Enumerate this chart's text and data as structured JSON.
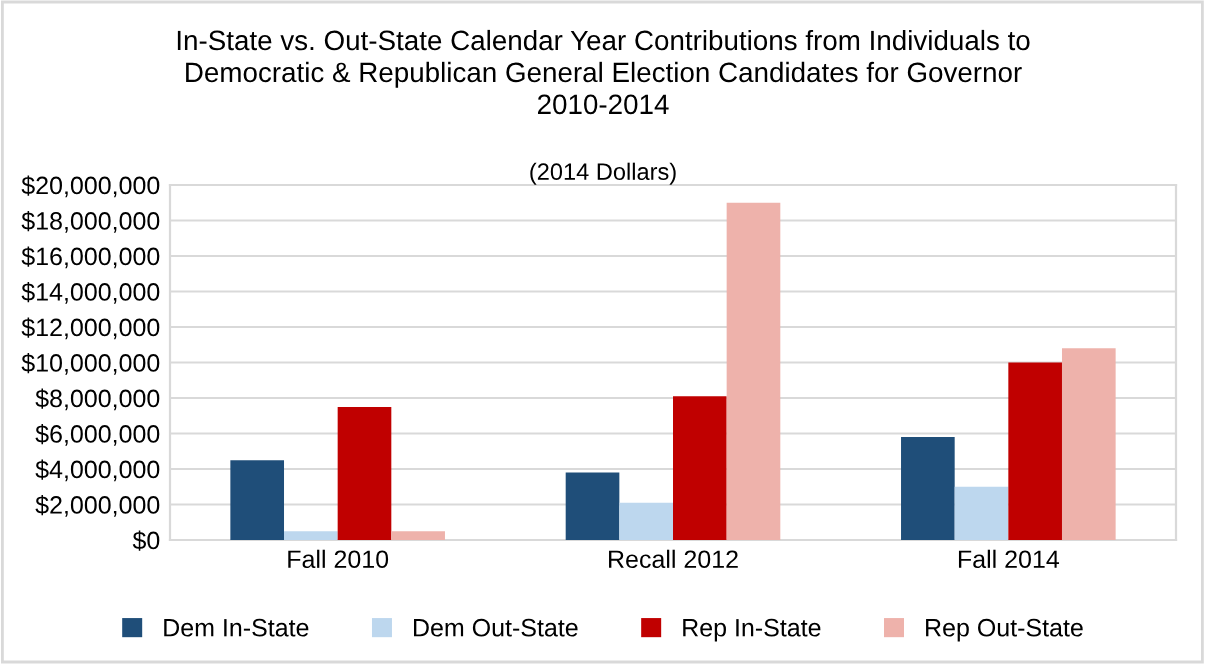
{
  "chart_data": {
    "type": "bar",
    "title": "In-State vs. Out-State Calendar Year Contributions from Individuals to\nDemocratic & Republican General Election Candidates for Governor\n2010-2014",
    "subtitle": "(2014 Dollars)",
    "categories": [
      "Fall 2010",
      "Recall 2012",
      "Fall 2014"
    ],
    "series": [
      {
        "name": "Dem In-State",
        "color": "#1f4e79",
        "values": [
          4500000,
          3800000,
          5800000
        ]
      },
      {
        "name": "Dem Out-State",
        "color": "#bdd7ee",
        "values": [
          500000,
          2100000,
          3000000
        ]
      },
      {
        "name": "Rep In-State",
        "color": "#c00000",
        "values": [
          7500000,
          8100000,
          10000000
        ]
      },
      {
        "name": "Rep Out-State",
        "color": "#eeb2ab",
        "values": [
          500000,
          19000000,
          10800000
        ]
      }
    ],
    "ylim": [
      0,
      20000000
    ],
    "yticks": [
      {
        "value": 0,
        "label": "$0"
      },
      {
        "value": 2000000,
        "label": "$2,000,000"
      },
      {
        "value": 4000000,
        "label": "$4,000,000"
      },
      {
        "value": 6000000,
        "label": "$6,000,000"
      },
      {
        "value": 8000000,
        "label": "$8,000,000"
      },
      {
        "value": 10000000,
        "label": "$10,000,000"
      },
      {
        "value": 12000000,
        "label": "$12,000,000"
      },
      {
        "value": 14000000,
        "label": "$14,000,000"
      },
      {
        "value": 16000000,
        "label": "$16,000,000"
      },
      {
        "value": 18000000,
        "label": "$18,000,000"
      },
      {
        "value": 20000000,
        "label": "$20,000,000"
      }
    ],
    "grid": "y",
    "legend": "bottom"
  }
}
